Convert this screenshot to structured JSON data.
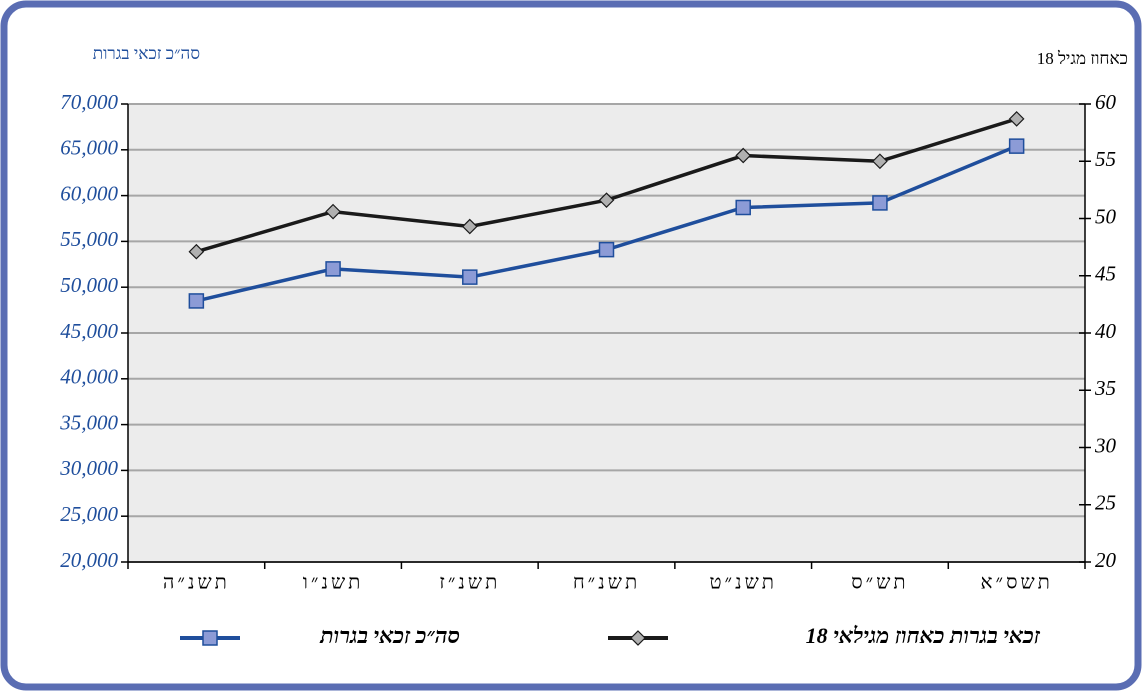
{
  "chart_data": {
    "type": "line",
    "y_title": "סה״כ זכאי בגרות",
    "y2_title": "כאחוז מגיל 18",
    "categories": [
      "תשנ״ה",
      "תשנ״ו",
      "תשנ״ז",
      "תשנ״ח",
      "תשנ״ט",
      "תש״ס",
      "תשס״א"
    ],
    "series": [
      {
        "name": "סה״כ זכאי בגרות",
        "color": "#1f4e9c",
        "marker": "square",
        "values": [
          48500,
          52000,
          51100,
          54100,
          58700,
          59200,
          65400
        ]
      },
      {
        "name": "זכאי בגרות כאחוז מגילאי 18",
        "color": "#1a1a1a",
        "marker": "diamond",
        "axis": "y2",
        "values": [
          47.1,
          50.6,
          49.3,
          51.6,
          55.5,
          55.0,
          58.7
        ]
      }
    ],
    "ylim": [
      20000,
      70000
    ],
    "yticks": [
      {
        "value": 20000,
        "label": "20,000"
      },
      {
        "value": 25000,
        "label": "25,000"
      },
      {
        "value": 30000,
        "label": "30,000"
      },
      {
        "value": 35000,
        "label": "35,000"
      },
      {
        "value": 40000,
        "label": "40,000"
      },
      {
        "value": 45000,
        "label": "45,000"
      },
      {
        "value": 50000,
        "label": "50,000"
      },
      {
        "value": 55000,
        "label": "55,000"
      },
      {
        "value": 60000,
        "label": "60,000"
      },
      {
        "value": 65000,
        "label": "65,000"
      },
      {
        "value": 70000,
        "label": "70,000"
      }
    ],
    "y2lim": [
      20,
      60
    ],
    "y2ticks": [
      20,
      25,
      30,
      35,
      40,
      45,
      50,
      55,
      60
    ],
    "grid": true
  }
}
